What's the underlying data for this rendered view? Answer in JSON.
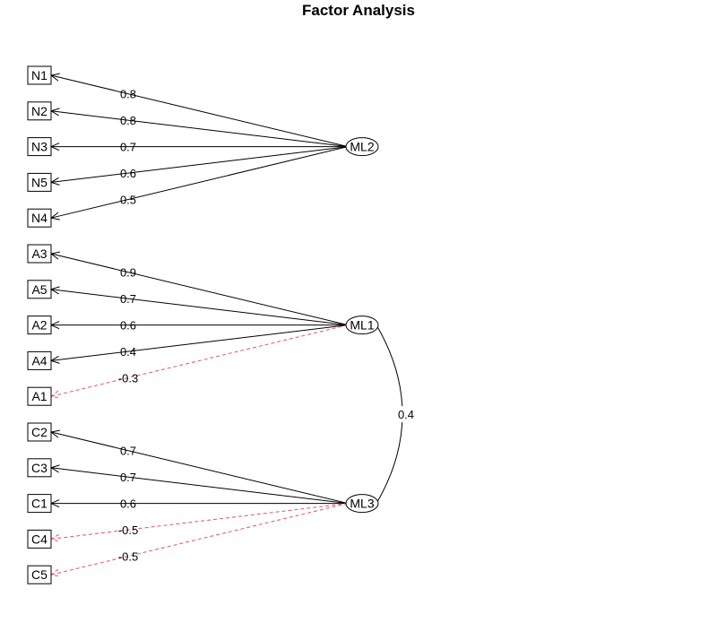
{
  "title": "Factor Analysis",
  "colors": {
    "positive": "#000000",
    "negative": "#df536b"
  },
  "factors": [
    {
      "name": "ML2",
      "indicators": [
        {
          "name": "N1",
          "loading": 0.8,
          "label": "0.8"
        },
        {
          "name": "N2",
          "loading": 0.8,
          "label": "0.8"
        },
        {
          "name": "N3",
          "loading": 0.7,
          "label": "0.7"
        },
        {
          "name": "N5",
          "loading": 0.6,
          "label": "0.6"
        },
        {
          "name": "N4",
          "loading": 0.5,
          "label": "0.5"
        }
      ]
    },
    {
      "name": "ML1",
      "indicators": [
        {
          "name": "A3",
          "loading": 0.9,
          "label": "0.9"
        },
        {
          "name": "A5",
          "loading": 0.7,
          "label": "0.7"
        },
        {
          "name": "A2",
          "loading": 0.6,
          "label": "0.6"
        },
        {
          "name": "A4",
          "loading": 0.4,
          "label": "0.4"
        },
        {
          "name": "A1",
          "loading": -0.3,
          "label": "-0.3"
        }
      ]
    },
    {
      "name": "ML3",
      "indicators": [
        {
          "name": "C2",
          "loading": 0.7,
          "label": "0.7"
        },
        {
          "name": "C3",
          "loading": 0.7,
          "label": "0.7"
        },
        {
          "name": "C1",
          "loading": 0.6,
          "label": "0.6"
        },
        {
          "name": "C4",
          "loading": -0.5,
          "label": "-0.5"
        },
        {
          "name": "C5",
          "loading": -0.5,
          "label": "-0.5"
        }
      ]
    }
  ],
  "correlations": [
    {
      "from": "ML1",
      "to": "ML3",
      "value": 0.4,
      "label": "0.4"
    }
  ]
}
